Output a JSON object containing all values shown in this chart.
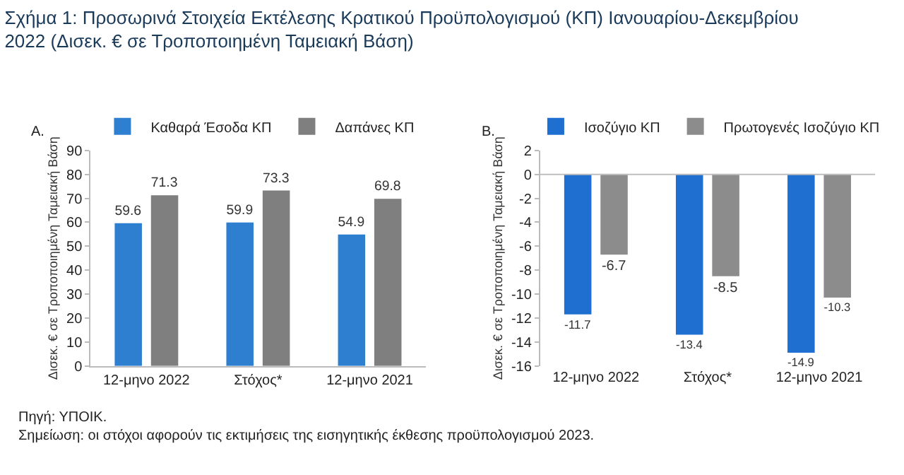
{
  "chart_data": [
    {
      "type": "bar",
      "title": "Σχήμα 1: Προσωρινά Στοιχεία Εκτέλεσης Κρατικού Προϋπολογισμού (ΚΠ) Ιανουαρίου-Δεκεμβρίου 2022 (Δισεκ. € σε Τροποποιημένη Ταμειακή Βάση)",
      "annotations": [
        "A.",
        "Πηγή: ΥΠΟΙΚ.",
        "Σημείωση: οι στόχοι αφορούν τις εκτιμήσεις της εισηγητικής έκθεσης προϋπολογισμού 2023."
      ],
      "ylabel": "Δισεκ. € σε Τροποποιημένη Ταμειακή Βάση",
      "categories": [
        "12-μηνο 2022",
        "Στόχος*",
        "12-μηνο 2021"
      ],
      "series": [
        {
          "name": "Καθαρά Έσοδα ΚΠ",
          "color": "#2f7fd0",
          "values": [
            59.6,
            59.9,
            54.9
          ]
        },
        {
          "name": "Δαπάνες ΚΠ",
          "color": "#7f7f7f",
          "values": [
            71.3,
            73.3,
            69.8
          ]
        }
      ],
      "ylim": [
        0,
        90
      ],
      "yticks": [
        0,
        10,
        20,
        30,
        40,
        50,
        60,
        70,
        80,
        90
      ],
      "data_labels": true,
      "legend": "top"
    },
    {
      "type": "bar",
      "annotations": [
        "B."
      ],
      "ylabel": "Δισεκ. € σε Τροποποιημένη Ταμειακή Βάση",
      "categories": [
        "12-μηνο 2022",
        "Στόχος*",
        "12-μηνο 2021"
      ],
      "series": [
        {
          "name": "Ισοζύγιο ΚΠ",
          "color": "#1f6fd0",
          "values": [
            -11.7,
            -13.4,
            -14.9
          ]
        },
        {
          "name": "Πρωτογενές Ισοζύγιο ΚΠ",
          "color": "#8c8c8c",
          "values": [
            -6.7,
            -8.5,
            -10.3
          ]
        }
      ],
      "ylim": [
        -16,
        2
      ],
      "yticks": [
        -16,
        -14,
        -12,
        -10,
        -8,
        -6,
        -4,
        -2,
        0,
        2
      ],
      "ref_lines": [
        {
          "axis": "y",
          "value": 0,
          "color": "#bfbfbf"
        }
      ],
      "data_labels": true,
      "legend": "top"
    }
  ]
}
